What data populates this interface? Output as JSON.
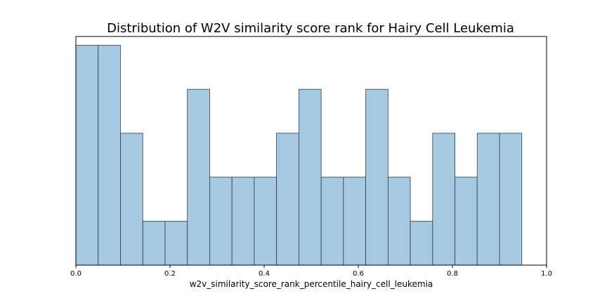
{
  "chart_data": {
    "type": "bar",
    "title": "Distribution of W2V similarity score rank for Hairy Cell Leukemia",
    "xlabel": "w2v_similarity_score_rank_percentile_hairy_cell_leukemia",
    "ylabel": "",
    "xlim": [
      0.0,
      1.0
    ],
    "ylim": [
      0,
      5.2
    ],
    "y_ticks_visible": false,
    "grid": false,
    "bin_edges": [
      0.0,
      0.0474,
      0.0947,
      0.1421,
      0.1895,
      0.2368,
      0.2842,
      0.3316,
      0.3789,
      0.4263,
      0.4737,
      0.5211,
      0.5684,
      0.6158,
      0.6632,
      0.7105,
      0.7579,
      0.8053,
      0.8526,
      0.9,
      0.9474
    ],
    "values": [
      5,
      5,
      3,
      1,
      1,
      4,
      2,
      2,
      2,
      3,
      4,
      2,
      2,
      4,
      2,
      1,
      3,
      2,
      3,
      3
    ],
    "x_ticks": [
      "0.0",
      "0.2",
      "0.4",
      "0.6",
      "0.8",
      "1.0"
    ],
    "bar_color": "#a6c8e0",
    "edge_color": "#2c3e50"
  }
}
